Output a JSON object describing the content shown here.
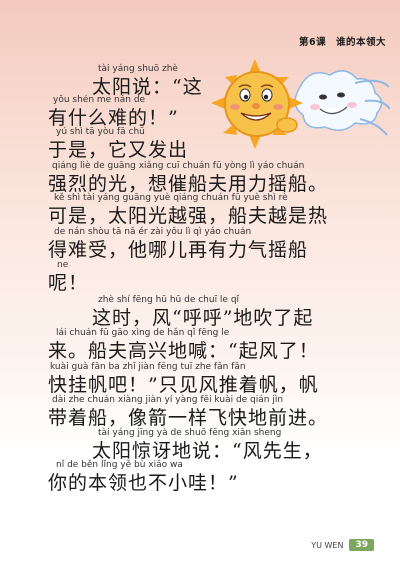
{
  "header": {
    "lesson": "第6课",
    "title": "谁的本领大"
  },
  "illustration": {
    "subject": "sun-and-wind-illustration"
  },
  "lines": [
    {
      "pinyin": "tài yáng shuō   zhè",
      "hanzi": "太阳说：“这"
    },
    {
      "pinyin": "yǒu shén me nán de",
      "hanzi": "有什么难的！”"
    },
    {
      "pinyin": "yú shì   tā  yòu fā chū",
      "hanzi": "于是，它又发出"
    },
    {
      "pinyin": "qiáng liè  de guāng  xiǎng cuī chuán fū yòng  lì  yáo chuán",
      "hanzi": "强烈的光，想催船夫用力摇船。"
    },
    {
      "pinyin": "kě  shì    tài yáng guāng yuè qiáng  chuán fū yuè shì  rè",
      "hanzi": "可是，太阳光越强，船夫越是热"
    },
    {
      "pinyin": "de nán shòu      tā  nǎ  ér  zài yǒu  lì  qì  yáo chuán",
      "hanzi": "得难受，他哪儿再有力气摇船"
    },
    {
      "pinyin": "ne",
      "hanzi": "呢！"
    },
    {
      "pinyin": "zhè  shí    fēng     hū  hū     de chuī  le  qǐ",
      "hanzi": "这时，风“呼呼”地吹了起"
    },
    {
      "pinyin": "lái      chuán fū gāo xìng de hǎn         qǐ fēng le",
      "hanzi": "来。船夫高兴地喊：“起风了！"
    },
    {
      "pinyin": "kuài guà fān  ba        zhǐ  jiàn fēng tuī zhe fān   fān",
      "hanzi": "快挂帆吧！”只见风推着帆，帆"
    },
    {
      "pinyin": "dài zhe chuán  xiàng jiàn yí yàng fēi kuài de qián jìn",
      "hanzi": "带着船，像箭一样飞快地前进。"
    },
    {
      "pinyin": "tài yáng jīng yà  de shuō       fēng xiān sheng",
      "hanzi": "太阳惊讶地说：“风先生，"
    },
    {
      "pinyin": "nǐ  de běn lǐng  yě  bù  xiǎo wa",
      "hanzi": "你的本领也不小哇！”"
    }
  ],
  "footer": {
    "label": "YU WEN",
    "page": "39"
  }
}
